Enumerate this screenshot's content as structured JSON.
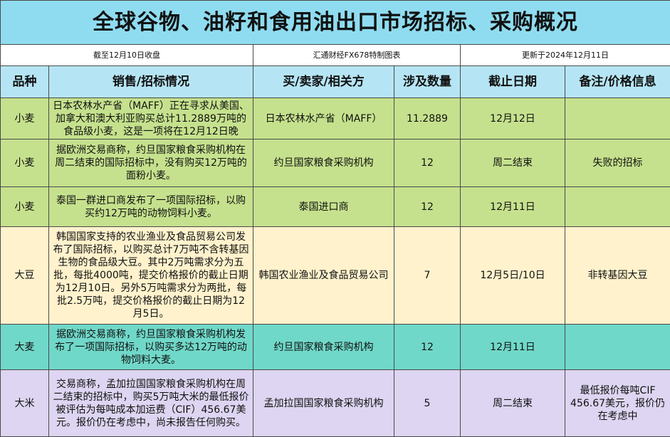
{
  "header": {
    "title": "全球谷物、油籽和食用油出口市场招标、采购概况",
    "as_of": "截至12月10日收盘",
    "source": "汇通财经FX678特制图表",
    "updated": "更新于2024年12月11日"
  },
  "table": {
    "columns": [
      "品种",
      "销售/招标情况",
      "买/卖家/相关方",
      "涉及数量",
      "截止日期",
      "备注/价格信息"
    ],
    "rows": [
      [
        "小麦",
        "日本农林水产省（MAFF）正在寻求从美国、加拿大和澳大利亚购买总计11.2889万吨的食品级小麦，这是一项将在12月12日晚",
        "日本农林水产省（MAFF）",
        "11.2889",
        "12月12日",
        ""
      ],
      [
        "小麦",
        "据欧洲交易商称，约旦国家粮食采购机构在周二结束的国际招标中，没有购买12万吨的面粉小麦。",
        "约旦国家粮食采购机构",
        "12",
        "周二结束",
        "失败的招标"
      ],
      [
        "小麦",
        "泰国一群进口商发布了一项国际招标，以购买约12万吨的动物饲料小麦。",
        "泰国进口商",
        "12",
        "12月11日",
        ""
      ],
      [
        "大豆",
        "韩国国家支持的农业渔业及食品贸易公司发布了国际招标，以购买总计7万吨不含转基因生物的食品级大豆。其中2万吨需求分为五批，每批4000吨，提交价格报价的截止日期为12月10日。另外5万吨需求分为两批，每批2.5万吨，提交价格报价的截止日期为12月5日。",
        "韩国农业渔业及食品贸易公司",
        "7",
        "12月5日/10日",
        "非转基因大豆"
      ],
      [
        "大麦",
        "据欧洲交易商称，约旦国家粮食采购机构发布了一项国际招标，以购买多达12万吨的动物饲料大麦。",
        "约旦国家粮食采购机构",
        "12",
        "12月11日",
        ""
      ],
      [
        "大米",
        "交易商称，孟加拉国国家粮食采购机构在周二结束的招标中，购买5万吨大米的最低报价被评估为每吨成本加运费（CIF）456.67美元。报价仍在考虑中，尚未报告任何购买。",
        "孟加拉国国家粮食采购机构",
        "5",
        "周二结束",
        "最低报价每吨CIF 456.67美元，报价仍在考虑中"
      ]
    ]
  }
}
